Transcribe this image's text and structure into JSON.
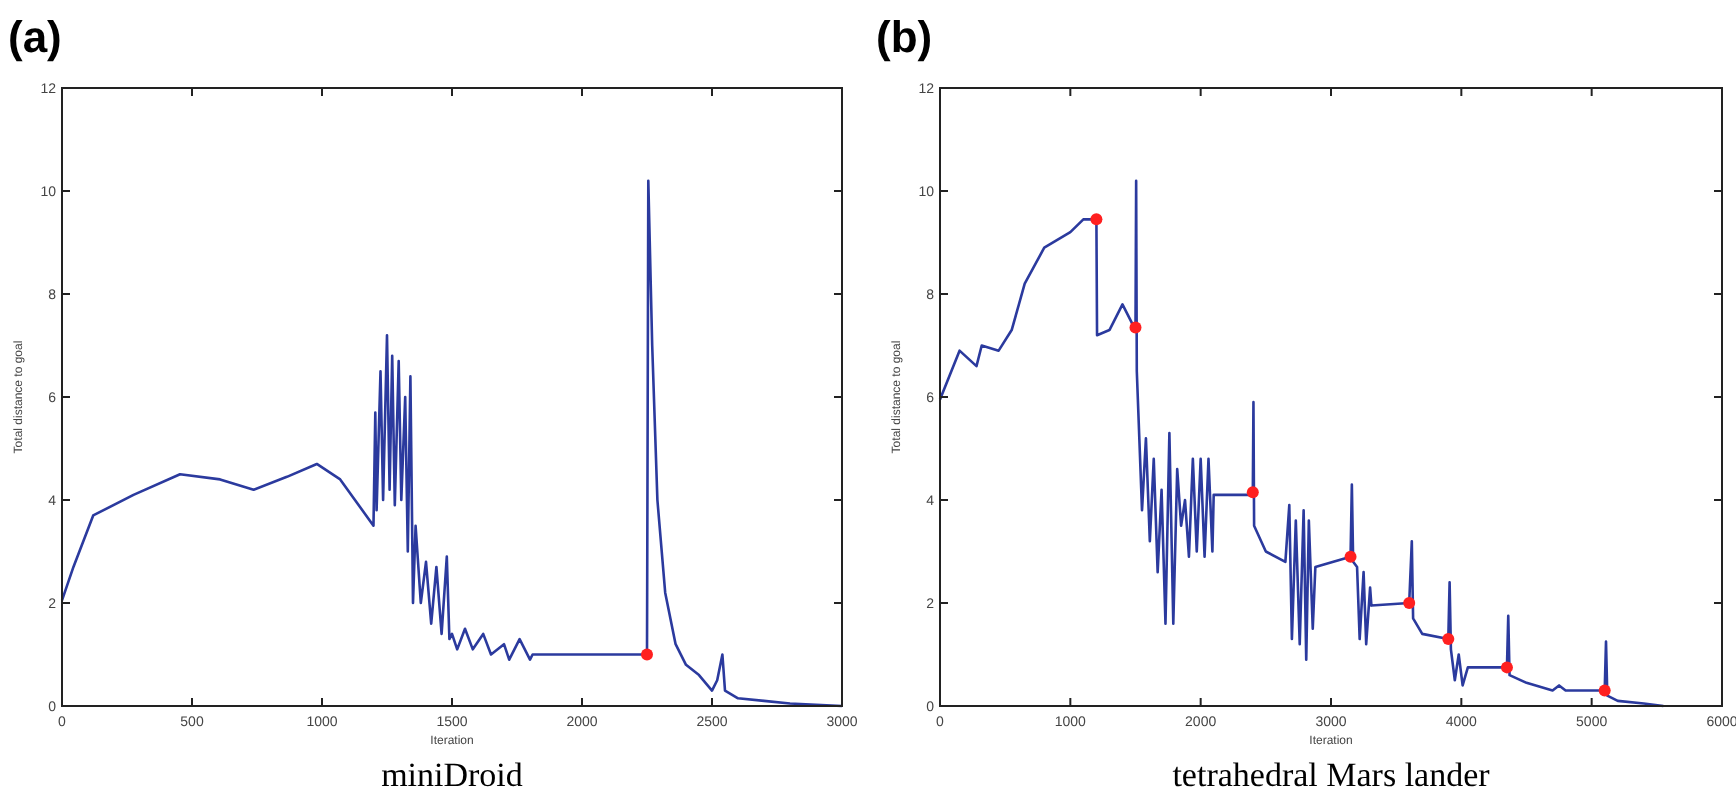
{
  "chart_data": [
    {
      "type": "line",
      "title": "(a)",
      "subtitle": "miniDroid",
      "xlabel": "Iteration",
      "ylabel": "Total distance to goal",
      "xlim": [
        0,
        3000
      ],
      "xticks": [
        0,
        500,
        1000,
        1500,
        2000,
        2500,
        3000
      ],
      "ylim": [
        0,
        12
      ],
      "yticks": [
        0,
        2,
        4,
        6,
        8,
        10,
        12
      ],
      "grid": false,
      "series": [
        {
          "type": "line",
          "color": "#2b3a9e",
          "x": [
            0,
            44,
            120,
            275,
            454,
            608,
            737,
            865,
            980,
            1070,
            1198,
            1205,
            1210,
            1225,
            1235,
            1250,
            1260,
            1270,
            1280,
            1295,
            1305,
            1320,
            1330,
            1340,
            1350,
            1360,
            1380,
            1400,
            1420,
            1440,
            1460,
            1480,
            1490,
            1500,
            1520,
            1550,
            1580,
            1620,
            1650,
            1700,
            1720,
            1760,
            1800,
            1810,
            2250,
            2255,
            2270,
            2290,
            2320,
            2360,
            2400,
            2450,
            2500,
            2520,
            2540,
            2550,
            2600,
            2700,
            2800,
            3000
          ],
          "values": [
            2.05,
            2.7,
            3.7,
            4.1,
            4.5,
            4.4,
            4.2,
            4.45,
            4.7,
            4.4,
            3.5,
            5.7,
            3.8,
            6.5,
            4.0,
            7.2,
            4.2,
            6.8,
            3.9,
            6.7,
            4.0,
            6.0,
            3.0,
            6.4,
            2.0,
            3.5,
            2.0,
            2.8,
            1.6,
            2.7,
            1.4,
            2.9,
            1.3,
            1.4,
            1.1,
            1.5,
            1.1,
            1.4,
            1.0,
            1.2,
            0.9,
            1.3,
            0.9,
            1.0,
            1.0,
            10.2,
            7.0,
            4.0,
            2.2,
            1.2,
            0.8,
            0.6,
            0.3,
            0.5,
            1.0,
            0.3,
            0.15,
            0.1,
            0.05,
            0
          ]
        },
        {
          "type": "scatter",
          "color": "#ff2020",
          "marker": "circle",
          "x": [
            2250
          ],
          "values": [
            1.0
          ]
        }
      ]
    },
    {
      "type": "line",
      "title": "(b)",
      "subtitle": "tetrahedral Mars lander",
      "xlabel": "Iteration",
      "ylabel": "Total distance to goal",
      "xlim": [
        0,
        6000
      ],
      "xticks": [
        0,
        1000,
        2000,
        3000,
        4000,
        5000,
        6000
      ],
      "ylim": [
        0,
        12
      ],
      "yticks": [
        0,
        2,
        4,
        6,
        8,
        10,
        12
      ],
      "grid": false,
      "series": [
        {
          "type": "line",
          "color": "#2b3a9e",
          "x": [
            0,
            150,
            280,
            320,
            450,
            550,
            650,
            800,
            1000,
            1100,
            1200,
            1205,
            1300,
            1400,
            1480,
            1500,
            1505,
            1510,
            1550,
            1580,
            1610,
            1640,
            1670,
            1700,
            1730,
            1760,
            1790,
            1820,
            1850,
            1880,
            1910,
            1940,
            1970,
            2000,
            2030,
            2060,
            2090,
            2100,
            2400,
            2405,
            2410,
            2500,
            2650,
            2680,
            2700,
            2730,
            2760,
            2790,
            2810,
            2830,
            2860,
            2880,
            3150,
            3160,
            3170,
            3200,
            3220,
            3250,
            3270,
            3300,
            3310,
            3600,
            3620,
            3630,
            3700,
            3900,
            3910,
            3920,
            3950,
            3980,
            4010,
            4050,
            4350,
            4360,
            4370,
            4500,
            4700,
            4750,
            4800,
            5100,
            5110,
            5120,
            5200,
            5400,
            5550
          ],
          "values": [
            5.95,
            6.9,
            6.6,
            7.0,
            6.9,
            7.3,
            8.2,
            8.9,
            9.2,
            9.45,
            9.45,
            7.2,
            7.3,
            7.8,
            7.4,
            7.35,
            10.2,
            6.5,
            3.8,
            5.2,
            3.2,
            4.8,
            2.6,
            4.2,
            1.6,
            5.3,
            1.6,
            4.6,
            3.5,
            4.0,
            2.9,
            4.8,
            3.0,
            4.8,
            2.9,
            4.8,
            3.0,
            4.1,
            4.1,
            5.9,
            3.5,
            3.0,
            2.8,
            3.9,
            1.3,
            3.6,
            1.2,
            3.8,
            0.9,
            3.6,
            1.5,
            2.7,
            2.9,
            4.3,
            2.8,
            2.7,
            1.3,
            2.6,
            1.2,
            2.3,
            1.95,
            2.0,
            3.2,
            1.7,
            1.4,
            1.3,
            2.4,
            1.1,
            0.5,
            1.0,
            0.4,
            0.75,
            0.75,
            1.75,
            0.6,
            0.45,
            0.3,
            0.4,
            0.3,
            0.3,
            1.25,
            0.2,
            0.1,
            0.05,
            0
          ]
        },
        {
          "type": "scatter",
          "color": "#ff2020",
          "marker": "circle",
          "x": [
            1200,
            1500,
            2400,
            3150,
            3600,
            3900,
            4350,
            5100
          ],
          "values": [
            9.45,
            7.35,
            4.15,
            2.9,
            2.0,
            1.3,
            0.75,
            0.3
          ]
        }
      ]
    }
  ]
}
